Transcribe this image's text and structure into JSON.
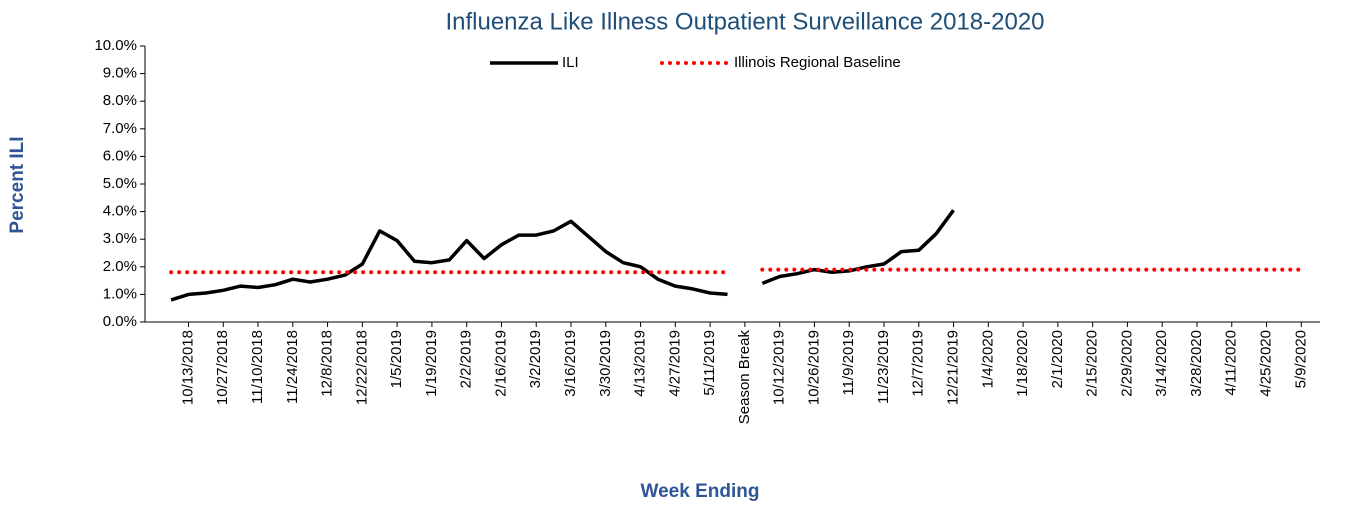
{
  "chart_data": {
    "type": "line",
    "title": "Influenza Like Illness Outpatient Surveillance 2018-2020",
    "x_label": "Week Ending",
    "y_label": "Percent ILI",
    "categories": [
      null,
      null,
      "10/13/2018",
      null,
      "10/27/2018",
      null,
      "11/10/2018",
      null,
      "11/24/2018",
      null,
      "12/8/2018",
      null,
      "12/22/2018",
      null,
      "1/5/2019",
      null,
      "1/19/2019",
      null,
      "2/2/2019",
      null,
      "2/16/2019",
      null,
      "3/2/2019",
      null,
      "3/16/2019",
      null,
      "3/30/2019",
      null,
      "4/13/2019",
      null,
      "4/27/2019",
      null,
      "5/11/2019",
      null,
      "Season Break",
      null,
      "10/12/2019",
      null,
      "10/26/2019",
      null,
      "11/9/2019",
      null,
      "11/23/2019",
      null,
      "12/7/2019",
      null,
      "12/21/2019",
      null,
      "1/4/2020",
      null,
      "1/18/2020",
      null,
      "2/1/2020",
      null,
      "2/15/2020",
      null,
      "2/29/2020",
      null,
      "3/14/2020",
      null,
      "3/28/2020",
      null,
      "4/11/2020",
      null,
      "4/25/2020",
      null,
      "5/9/2020"
    ],
    "series": [
      {
        "name": "ILI",
        "color": "#000000",
        "line_style": "solid",
        "values": [
          null,
          0.8,
          1.0,
          1.05,
          1.15,
          1.3,
          1.25,
          1.35,
          1.55,
          1.45,
          1.55,
          1.7,
          2.1,
          3.3,
          2.95,
          2.2,
          2.15,
          2.25,
          2.95,
          2.3,
          2.8,
          3.15,
          3.15,
          3.3,
          3.65,
          3.1,
          2.55,
          2.15,
          2.0,
          1.55,
          1.3,
          1.2,
          1.05,
          1.0,
          null,
          1.4,
          1.65,
          1.75,
          1.9,
          1.8,
          1.85,
          2.0,
          2.1,
          2.55,
          2.6,
          3.2,
          4.05,
          null,
          null,
          null,
          null,
          null,
          null,
          null,
          null,
          null,
          null,
          null,
          null,
          null,
          null,
          null,
          null,
          null,
          null,
          null,
          null
        ]
      },
      {
        "name": "Illinois Regional Baseline",
        "color": "#ff0000",
        "line_style": "dotted",
        "values": [
          null,
          1.8,
          1.8,
          1.8,
          1.8,
          1.8,
          1.8,
          1.8,
          1.8,
          1.8,
          1.8,
          1.8,
          1.8,
          1.8,
          1.8,
          1.8,
          1.8,
          1.8,
          1.8,
          1.8,
          1.8,
          1.8,
          1.8,
          1.8,
          1.8,
          1.8,
          1.8,
          1.8,
          1.8,
          1.8,
          1.8,
          1.8,
          1.8,
          1.8,
          null,
          1.9,
          1.9,
          1.9,
          1.9,
          1.9,
          1.9,
          1.9,
          1.9,
          1.9,
          1.9,
          1.9,
          1.9,
          1.9,
          1.9,
          1.9,
          1.9,
          1.9,
          1.9,
          1.9,
          1.9,
          1.9,
          1.9,
          1.9,
          1.9,
          1.9,
          1.9,
          1.9,
          1.9,
          1.9,
          1.9,
          1.9,
          1.9
        ]
      }
    ],
    "ylim": [
      0,
      10
    ],
    "yticks": [
      {
        "value": 0,
        "label": "0.0%"
      },
      {
        "value": 1,
        "label": "1.0%"
      },
      {
        "value": 2,
        "label": "2.0%"
      },
      {
        "value": 3,
        "label": "3.0%"
      },
      {
        "value": 4,
        "label": "4.0%"
      },
      {
        "value": 5,
        "label": "5.0%"
      },
      {
        "value": 6,
        "label": "6.0%"
      },
      {
        "value": 7,
        "label": "7.0%"
      },
      {
        "value": 8,
        "label": "8.0%"
      },
      {
        "value": 9,
        "label": "9.0%"
      },
      {
        "value": 10,
        "label": "10.0%"
      }
    ],
    "grid": false,
    "legend": "top"
  }
}
